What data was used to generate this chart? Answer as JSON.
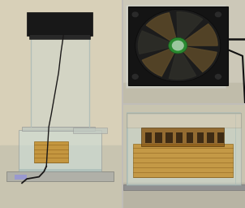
{
  "figsize": [
    3.02,
    2.56
  ],
  "dpi": 100,
  "bg_color": "#c0bdb8",
  "divider_color": "#ffffff",
  "panels": {
    "left": {
      "wall_color": "#d8d0b8",
      "floor_color": "#c8c4b0",
      "fan_color": "#1a1a1a",
      "tube_color": "#dde8e8",
      "tube_alpha": 0.45,
      "base_box_color": "#d8e4e0",
      "base_color": "#b8b8b0",
      "wire_color": "#1a1818",
      "element_color": "#c49030"
    },
    "top_right": {
      "wall_color": "#ccc8b8",
      "floor_color": "#c0bcaa",
      "fan_body_color": "#141414",
      "fan_inner_color": "#1e1e1e",
      "fan_hub_color": "#2a8a30",
      "fan_blade_color": "#383830",
      "wire_color": "#111111"
    },
    "bottom_right": {
      "wall_color": "#c8c4b0",
      "floor_color": "#b8b4a4",
      "box_color": "#d8e4e0",
      "element_amber": "#c49030",
      "element_dark": "#8a5a18",
      "base_metal": "#909090"
    }
  }
}
